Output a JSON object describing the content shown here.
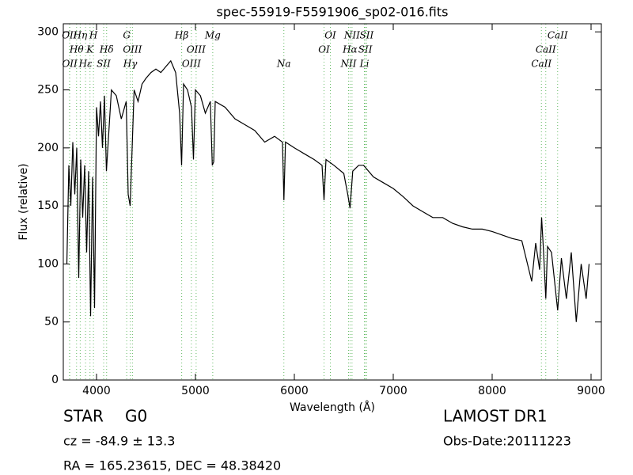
{
  "chart_data": {
    "type": "line",
    "title": "spec-55919-F5591906_sp02-016.fits",
    "xlabel": "Wavelength (Å)",
    "ylabel": "Flux (relative)",
    "xlim": [
      3664,
      9104
    ],
    "ylim": [
      0,
      307
    ],
    "xticks": [
      4000,
      5000,
      6000,
      7000,
      8000,
      9000
    ],
    "yticks": [
      0,
      50,
      100,
      150,
      200,
      250,
      300
    ],
    "x": [
      3700,
      3720,
      3740,
      3760,
      3780,
      3800,
      3820,
      3840,
      3860,
      3880,
      3900,
      3920,
      3940,
      3960,
      3980,
      4000,
      4020,
      4040,
      4060,
      4080,
      4100,
      4150,
      4200,
      4250,
      4300,
      4320,
      4340,
      4380,
      4420,
      4460,
      4500,
      4550,
      4600,
      4650,
      4700,
      4750,
      4800,
      4840,
      4860,
      4880,
      4920,
      4960,
      4980,
      5000,
      5050,
      5100,
      5150,
      5170,
      5185,
      5200,
      5300,
      5400,
      5500,
      5600,
      5700,
      5800,
      5880,
      5894,
      5910,
      6000,
      6100,
      6200,
      6280,
      6300,
      6320,
      6400,
      6500,
      6540,
      6563,
      6590,
      6650,
      6700,
      6800,
      6900,
      7000,
      7100,
      7200,
      7300,
      7400,
      7500,
      7600,
      7700,
      7800,
      7900,
      8000,
      8100,
      8200,
      8300,
      8400,
      8440,
      8480,
      8500,
      8520,
      8542,
      8560,
      8600,
      8662,
      8700,
      8750,
      8800,
      8850,
      8900,
      8950,
      8980
    ],
    "series": [
      {
        "color": "#000000",
        "values": [
          100,
          185,
          150,
          205,
          160,
          200,
          88,
          190,
          140,
          185,
          110,
          180,
          55,
          175,
          62,
          235,
          210,
          240,
          200,
          245,
          180,
          250,
          245,
          225,
          240,
          160,
          150,
          250,
          240,
          255,
          260,
          265,
          268,
          265,
          270,
          275,
          265,
          230,
          185,
          255,
          250,
          235,
          190,
          250,
          245,
          230,
          240,
          185,
          188,
          240,
          235,
          225,
          220,
          215,
          205,
          210,
          205,
          155,
          205,
          200,
          195,
          190,
          185,
          155,
          190,
          185,
          178,
          160,
          148,
          180,
          185,
          185,
          175,
          170,
          165,
          158,
          150,
          145,
          140,
          140,
          135,
          132,
          130,
          130,
          128,
          125,
          122,
          120,
          85,
          118,
          95,
          140,
          110,
          70,
          115,
          110,
          60,
          105,
          70,
          110,
          50,
          100,
          70,
          100
        ]
      }
    ],
    "line_color": "#66bb66",
    "lines": [
      {
        "label": "OII",
        "x": 3727
      },
      {
        "label": "Hθ",
        "x": 3798
      },
      {
        "label": "OII",
        "x": 3729
      },
      {
        "label": "Hη",
        "x": 3835
      },
      {
        "label": "K",
        "x": 3934
      },
      {
        "label": "Hε",
        "x": 3889
      },
      {
        "label": "H",
        "x": 3969
      },
      {
        "label": "Hδ",
        "x": 4102
      },
      {
        "label": "SII",
        "x": 4072
      },
      {
        "label": "G",
        "x": 4305
      },
      {
        "label": "OIII",
        "x": 4363
      },
      {
        "label": "Hγ",
        "x": 4341
      },
      {
        "label": "Hβ",
        "x": 4861
      },
      {
        "label": "OIII",
        "x": 5007
      },
      {
        "label": "OIII",
        "x": 4959
      },
      {
        "label": "Mg",
        "x": 5175
      },
      {
        "label": "OI",
        "x": 6300
      },
      {
        "label": "Na",
        "x": 5894
      },
      {
        "label": "OI",
        "x": 6364
      },
      {
        "label": "Hα",
        "x": 6563
      },
      {
        "label": "NII",
        "x": 6548
      },
      {
        "label": "NII",
        "x": 6583
      },
      {
        "label": "SII",
        "x": 6717
      },
      {
        "label": "Li",
        "x": 6708
      },
      {
        "label": "SII",
        "x": 6731
      },
      {
        "label": "CaII",
        "x": 8542
      },
      {
        "label": "CaII",
        "x": 8498
      },
      {
        "label": "CaII",
        "x": 8662
      }
    ]
  },
  "info": {
    "object_class": "STAR",
    "subclass": "G0",
    "cz": "cz = -84.9 ± 13.3",
    "coords": "RA = 165.23615, DEC = 48.38420",
    "survey": "LAMOST DR1",
    "obs_date": "Obs-Date:20111223"
  }
}
